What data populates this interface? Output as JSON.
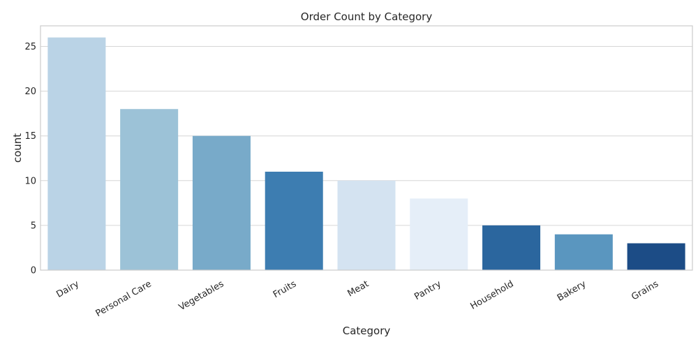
{
  "chart_data": {
    "type": "bar",
    "title": "Order Count by Category",
    "xlabel": "Category",
    "ylabel": "count",
    "categories": [
      "Dairy",
      "Personal Care",
      "Vegetables",
      "Fruits",
      "Meat",
      "Pantry",
      "Household",
      "Bakery",
      "Grains"
    ],
    "values": [
      26,
      18,
      15,
      11,
      10,
      8,
      5,
      4,
      3
    ],
    "colors": [
      "#bad3e6",
      "#9cc2d7",
      "#78aac9",
      "#3d7db1",
      "#d4e3f1",
      "#e5eef8",
      "#2b669e",
      "#5a96bf",
      "#1c4c86"
    ],
    "ylim": [
      0,
      27.3
    ],
    "yticks": [
      0,
      5,
      10,
      15,
      20,
      25
    ],
    "grid": "horizontal",
    "style": {
      "grid_color": "#d6d6d6",
      "frame_color": "#cccccc",
      "text_color": "#262626"
    }
  }
}
